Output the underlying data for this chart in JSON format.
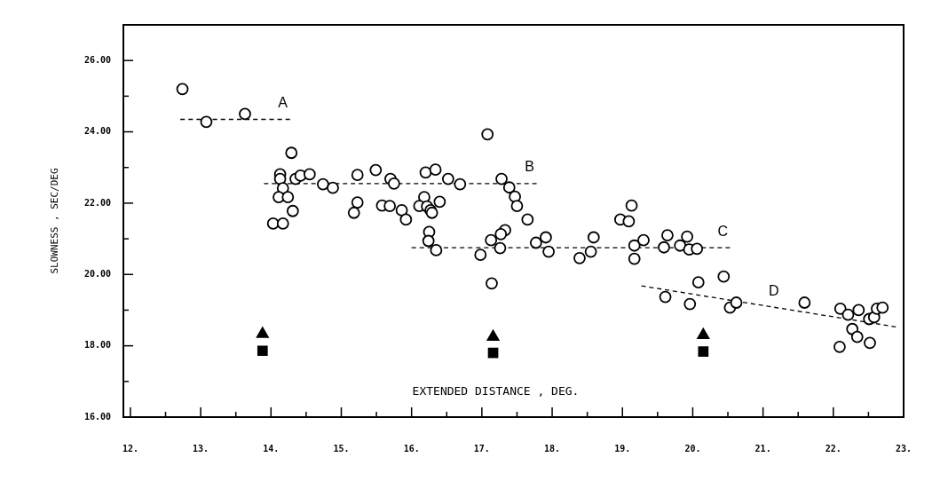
{
  "chart_data": {
    "type": "scatter",
    "xlabel": "EXTENDED DISTANCE , DEG.",
    "ylabel": "SLOWNESS , SEC/DEG",
    "xlim": [
      11.9,
      23
    ],
    "ylim": [
      16,
      27
    ],
    "xticks": [
      {
        "value": 12,
        "label": "12."
      },
      {
        "value": 12.5,
        "label": null
      },
      {
        "value": 13,
        "label": "13."
      },
      {
        "value": 13.5,
        "label": null
      },
      {
        "value": 14,
        "label": "14."
      },
      {
        "value": 14.5,
        "label": null
      },
      {
        "value": 15,
        "label": "15."
      },
      {
        "value": 15.5,
        "label": null
      },
      {
        "value": 16,
        "label": "16."
      },
      {
        "value": 16.5,
        "label": null
      },
      {
        "value": 17,
        "label": "17."
      },
      {
        "value": 17.5,
        "label": null
      },
      {
        "value": 18,
        "label": "18."
      },
      {
        "value": 18.5,
        "label": null
      },
      {
        "value": 19,
        "label": "19."
      },
      {
        "value": 19.5,
        "label": null
      },
      {
        "value": 20,
        "label": "20."
      },
      {
        "value": 20.5,
        "label": null
      },
      {
        "value": 21,
        "label": "21."
      },
      {
        "value": 21.5,
        "label": null
      },
      {
        "value": 22,
        "label": "22."
      },
      {
        "value": 22.5,
        "label": null
      },
      {
        "value": 23,
        "label": "23."
      }
    ],
    "yticks": [
      {
        "value": 16,
        "label": "16.00"
      },
      {
        "value": 17,
        "label": null
      },
      {
        "value": 18,
        "label": "18.00"
      },
      {
        "value": 19,
        "label": null
      },
      {
        "value": 20,
        "label": "20.00"
      },
      {
        "value": 21,
        "label": null
      },
      {
        "value": 22,
        "label": "22.00"
      },
      {
        "value": 23,
        "label": null
      },
      {
        "value": 24,
        "label": "24.00"
      },
      {
        "value": 25,
        "label": null
      },
      {
        "value": 26,
        "label": "26.00"
      }
    ],
    "grid": false,
    "legend": false,
    "series": [
      {
        "marker": "circle",
        "color": "#000000",
        "x": [
          12.74,
          13.08,
          13.63,
          14.29,
          14.13,
          14.13,
          14.17,
          14.11,
          14.24,
          14.31,
          14.03,
          14.17,
          14.35,
          14.42,
          14.55,
          14.74,
          14.88,
          15.23,
          15.23,
          15.18,
          15.49,
          15.58,
          15.69,
          15.7,
          15.75,
          15.86,
          15.92,
          16.2,
          16.34,
          16.52,
          16.69,
          16.18,
          16.11,
          16.22,
          16.27,
          16.29,
          16.4,
          16.25,
          16.24,
          16.35,
          16.98,
          17.08,
          17.14,
          17.28,
          17.39,
          17.47,
          17.5,
          17.65,
          17.33,
          17.27,
          17.13,
          17.26,
          17.77,
          17.91,
          17.95,
          18.39,
          18.55,
          18.59,
          18.97,
          19.09,
          19.13,
          19.17,
          19.17,
          19.3,
          19.59,
          19.64,
          19.82,
          19.92,
          19.95,
          20.06,
          20.08,
          20.44,
          19.61,
          19.96,
          20.53,
          20.62,
          21.59,
          22.1,
          22.21,
          22.36,
          22.27,
          22.34,
          22.51,
          22.58,
          22.62,
          22.7,
          22.09,
          22.52
        ],
        "values": [
          25.2,
          24.28,
          24.5,
          23.41,
          22.81,
          22.68,
          22.42,
          22.17,
          22.17,
          21.78,
          21.43,
          21.43,
          22.68,
          22.77,
          22.81,
          22.53,
          22.43,
          22.79,
          22.02,
          21.73,
          22.93,
          21.93,
          21.92,
          22.68,
          22.55,
          21.8,
          21.54,
          22.86,
          22.94,
          22.68,
          22.53,
          22.17,
          21.92,
          21.91,
          21.8,
          21.73,
          22.04,
          21.19,
          20.94,
          20.68,
          20.55,
          23.93,
          19.75,
          22.68,
          22.44,
          22.18,
          21.92,
          21.54,
          21.24,
          21.13,
          20.96,
          20.74,
          20.89,
          21.04,
          20.64,
          20.46,
          20.64,
          21.04,
          21.54,
          21.49,
          21.93,
          20.81,
          20.44,
          20.96,
          20.76,
          21.1,
          20.81,
          21.06,
          20.7,
          20.72,
          19.78,
          19.94,
          19.37,
          19.17,
          19.07,
          19.21,
          19.21,
          19.04,
          18.87,
          19.0,
          18.47,
          18.25,
          18.75,
          18.8,
          19.04,
          19.07,
          17.97,
          18.08
        ]
      },
      {
        "marker": "triangle",
        "color": "#000000",
        "x": [
          13.88,
          17.16,
          20.15
        ],
        "values": [
          18.33,
          18.25,
          18.3
        ]
      },
      {
        "marker": "square",
        "color": "#000000",
        "x": [
          13.88,
          17.16,
          20.15
        ],
        "values": [
          17.86,
          17.8,
          17.84
        ]
      },
      {
        "type": "line",
        "name": "A",
        "marker": "none",
        "line_style": "dashed",
        "color": "#000000",
        "x": [
          12.71,
          14.27
        ],
        "values": [
          24.35,
          24.35
        ]
      },
      {
        "type": "line",
        "name": "B",
        "marker": "none",
        "line_style": "dashed",
        "color": "#000000",
        "x": [
          13.9,
          17.78
        ],
        "values": [
          22.55,
          22.55
        ]
      },
      {
        "type": "line",
        "name": "C",
        "marker": "none",
        "line_style": "dashed",
        "color": "#000000",
        "x": [
          16.0,
          20.53
        ],
        "values": [
          20.75,
          20.75
        ]
      },
      {
        "type": "line",
        "name": "D",
        "marker": "none",
        "line_style": "dashed",
        "color": "#000000",
        "x": [
          19.27,
          22.89
        ],
        "values": [
          19.68,
          18.53
        ]
      }
    ]
  }
}
